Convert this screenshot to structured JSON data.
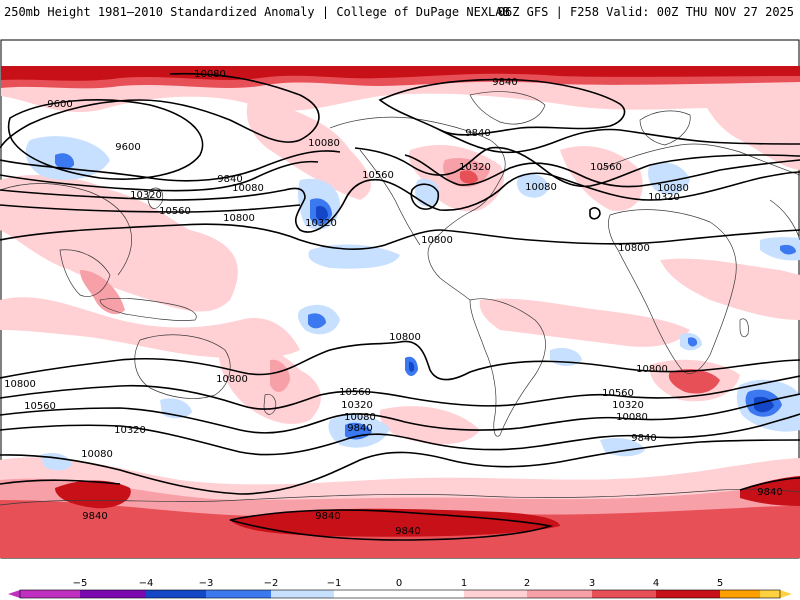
{
  "header": {
    "title": "250mb Height 1981–2010 Standardized Anomaly | College of DuPage NEXLAB",
    "run_info": "06Z GFS | F258 Valid: 00Z THU NOV 27 2025"
  },
  "colors": {
    "neg5": "#c030c0",
    "neg4": "#7a0ab0",
    "neg3": "#1446c8",
    "neg2": "#3c78f0",
    "neg1": "#c8e0ff",
    "zero": "#ffffff",
    "pos1": "#ffd0d4",
    "pos2": "#f8a0a8",
    "pos3": "#e85058",
    "pos4": "#c81018",
    "pos5": "#ffa000",
    "pos6": "#ffd040"
  },
  "contour_labels": [
    {
      "id": "lbl-10080-top",
      "text": "10080"
    },
    {
      "id": "lbl-9840-top",
      "text": "9840"
    },
    {
      "id": "lbl-9600-a",
      "text": "9600"
    },
    {
      "id": "lbl-9600-b",
      "text": "9600"
    },
    {
      "id": "lbl-9840-nafr",
      "text": "9840"
    },
    {
      "id": "lbl-10080-alaska",
      "text": "10080"
    },
    {
      "id": "lbl-9840-asia",
      "text": "9840"
    },
    {
      "id": "lbl-10080-asia",
      "text": "10080"
    },
    {
      "id": "lbl-10320-asia",
      "text": "10320"
    },
    {
      "id": "lbl-10560-asia",
      "text": "10560"
    },
    {
      "id": "lbl-10800-asia",
      "text": "10800"
    },
    {
      "id": "lbl-10320-pac",
      "text": "10320"
    },
    {
      "id": "lbl-10560-na",
      "text": "10560"
    },
    {
      "id": "lbl-10320-na",
      "text": "10320"
    },
    {
      "id": "lbl-10800-na",
      "text": "10800"
    },
    {
      "id": "lbl-10080-atl",
      "text": "10080"
    },
    {
      "id": "lbl-10560-atl",
      "text": "10560"
    },
    {
      "id": "lbl-10080-eur",
      "text": "10080"
    },
    {
      "id": "lbl-10320-eur",
      "text": "10320"
    },
    {
      "id": "lbl-10800-afr",
      "text": "10800"
    },
    {
      "id": "lbl-10800-pac",
      "text": "10800"
    },
    {
      "id": "lbl-10800-sw",
      "text": "10800"
    },
    {
      "id": "lbl-10800-s-pac",
      "text": "10800"
    },
    {
      "id": "lbl-10560-sw",
      "text": "10560"
    },
    {
      "id": "lbl-10320-sw",
      "text": "10320"
    },
    {
      "id": "lbl-10080-sw",
      "text": "10080"
    },
    {
      "id": "lbl-9840-sw",
      "text": "9840"
    },
    {
      "id": "lbl-10560-spac",
      "text": "10560"
    },
    {
      "id": "lbl-10320-spac",
      "text": "10320"
    },
    {
      "id": "lbl-10080-spac",
      "text": "10080"
    },
    {
      "id": "lbl-9840-spac",
      "text": "9840"
    },
    {
      "id": "lbl-10800-satl",
      "text": "10800"
    },
    {
      "id": "lbl-10560-satl",
      "text": "10560"
    },
    {
      "id": "lbl-10320-satl",
      "text": "10320"
    },
    {
      "id": "lbl-10080-satl",
      "text": "10080"
    },
    {
      "id": "lbl-9840-satl",
      "text": "9840"
    },
    {
      "id": "lbl-9840-ant1",
      "text": "9840"
    },
    {
      "id": "lbl-9840-ant2",
      "text": "9840"
    },
    {
      "id": "lbl-9840-ant3",
      "text": "9840"
    }
  ],
  "colorbar": {
    "ticks": [
      "−5",
      "−4",
      "−3",
      "−2",
      "−1",
      "0",
      "1",
      "2",
      "3",
      "4",
      "5"
    ]
  }
}
